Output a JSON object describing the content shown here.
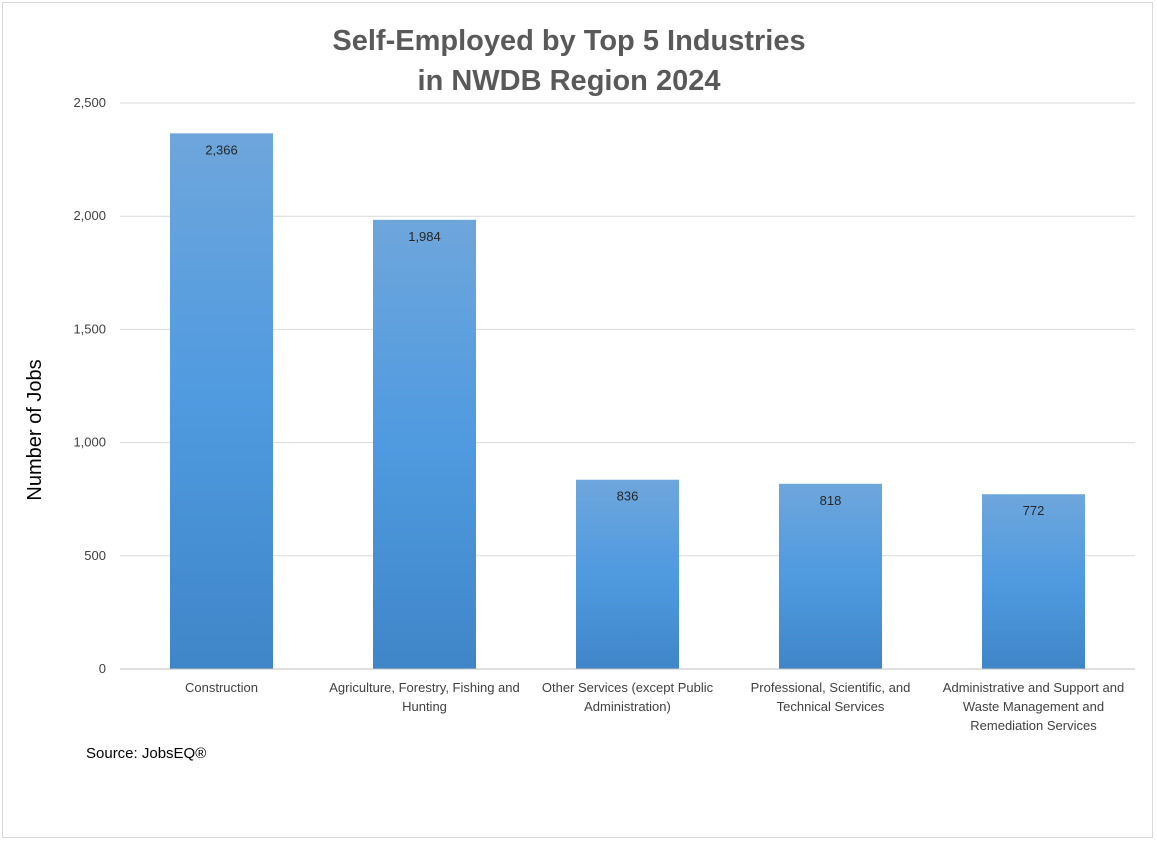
{
  "chart_data": {
    "type": "bar",
    "title_lines": [
      "Self-Employed by Top 5 Industries",
      "in NWDB Region 2024"
    ],
    "xlabel": "",
    "ylabel": "Number of Jobs",
    "categories": [
      [
        "Construction"
      ],
      [
        "Agriculture, Forestry, Fishing and",
        "Hunting"
      ],
      [
        "Other Services (except Public",
        "Administration)"
      ],
      [
        "Professional, Scientific, and",
        "Technical Services"
      ],
      [
        "Administrative and Support and",
        "Waste Management and",
        "Remediation Services"
      ]
    ],
    "values": [
      2366,
      1984,
      836,
      818,
      772
    ],
    "data_labels": [
      "2,366",
      "1,984",
      "836",
      "818",
      "772"
    ],
    "ylim": [
      0,
      2500
    ],
    "yticks": [
      0,
      500,
      1000,
      1500,
      2000,
      2500
    ],
    "ytick_labels": [
      "0",
      "500",
      "1,000",
      "1,500",
      "2,000",
      "2,500"
    ],
    "grid": true,
    "legend": "none",
    "bar_color": "#5b9bd5",
    "source": "Source: JobsEQ®"
  }
}
